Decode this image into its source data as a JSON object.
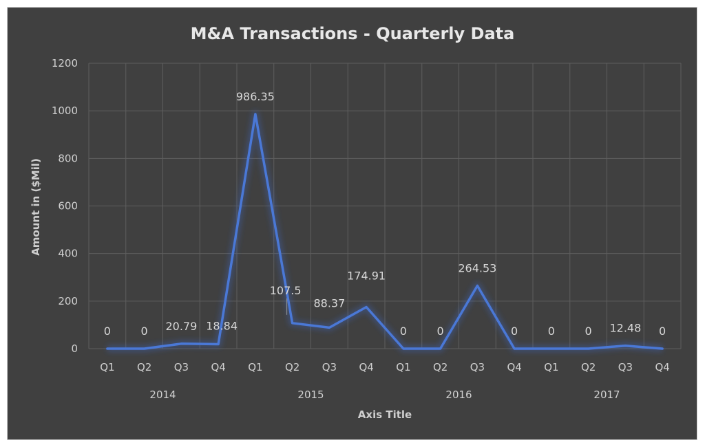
{
  "chart_data": {
    "type": "line",
    "title": "M&A Transactions - Quarterly Data",
    "xlabel": "Axis Title",
    "ylabel": "Amount in ($Mil)",
    "ylim": [
      0,
      1200
    ],
    "yticks": [
      "0",
      "200",
      "400",
      "600",
      "800",
      "1000",
      "1200"
    ],
    "grid": true,
    "legend": "none",
    "line_color": "#4a78d6",
    "categories": [
      "Q1",
      "Q2",
      "Q3",
      "Q4",
      "Q1",
      "Q2",
      "Q3",
      "Q4",
      "Q1",
      "Q2",
      "Q3",
      "Q4",
      "Q1",
      "Q2",
      "Q3",
      "Q4"
    ],
    "groups": [
      {
        "label": "2014",
        "start": 0,
        "end": 3
      },
      {
        "label": "2015",
        "start": 4,
        "end": 7
      },
      {
        "label": "2016",
        "start": 8,
        "end": 11
      },
      {
        "label": "2017",
        "start": 12,
        "end": 15
      }
    ],
    "series": [
      {
        "values": [
          0,
          0,
          20.79,
          18.84,
          986.35,
          107.5,
          88.37,
          174.91,
          0,
          0,
          264.53,
          0,
          0,
          0,
          12.48,
          0
        ],
        "data_labels": [
          "0",
          "0",
          "20.79",
          "18.84",
          "986.35",
          "107.5",
          "88.37",
          "174.91",
          "0",
          "0",
          "264.53",
          "0",
          "0",
          "0",
          "12.48",
          "0"
        ]
      }
    ]
  }
}
